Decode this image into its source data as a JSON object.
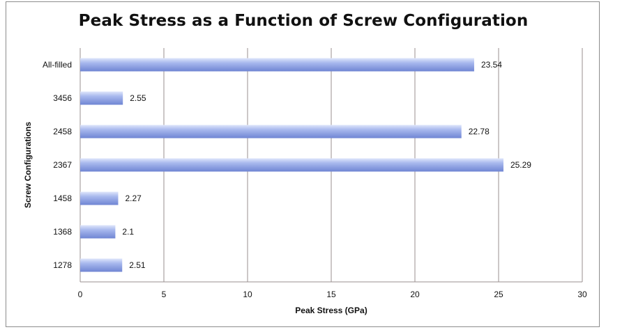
{
  "chart_data": {
    "type": "bar",
    "orientation": "horizontal",
    "title": "Peak Stress as a Function of Screw Configuration",
    "xlabel": "Peak Stress (GPa)",
    "ylabel": "Screw Configurations",
    "categories": [
      "1278",
      "1368",
      "1458",
      "2367",
      "2458",
      "3456",
      "All-filled"
    ],
    "values": [
      2.51,
      2.1,
      2.27,
      25.29,
      22.78,
      2.55,
      23.54
    ],
    "value_labels": [
      "2.51",
      "2.1",
      "2.27",
      "25.29",
      "22.78",
      "2.55",
      "23.54"
    ],
    "xlim": [
      0,
      30
    ],
    "xticks": [
      0,
      5,
      10,
      15,
      20,
      25,
      30
    ],
    "grid": "vertical",
    "legend": "none",
    "colors": {
      "bar": "#a9b9ee",
      "bar_light": "#dfe6fb",
      "bar_dark": "#6f85d3",
      "grid": "#9a8f8f",
      "frame": "#8c8c8c"
    }
  }
}
